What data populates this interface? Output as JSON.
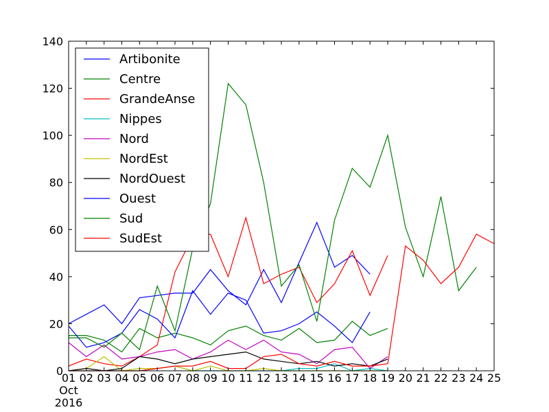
{
  "chart_data": {
    "type": "line",
    "title": "",
    "xlabel": "",
    "ylabel": "",
    "x_tick_labels": [
      "01",
      "02",
      "03",
      "04",
      "05",
      "06",
      "07",
      "08",
      "09",
      "10",
      "11",
      "12",
      "13",
      "14",
      "15",
      "16",
      "17",
      "18",
      "19",
      "20",
      "21",
      "22",
      "23",
      "24",
      "25"
    ],
    "x_sub_labels": [
      "Oct",
      "2016"
    ],
    "x_range": [
      1,
      25
    ],
    "ylim": [
      0,
      140
    ],
    "y_ticks": [
      0,
      20,
      40,
      60,
      80,
      100,
      120,
      140
    ],
    "grid": false,
    "legend_position": "top-left",
    "series": [
      {
        "name": "Artibonite",
        "color": "#0000ff",
        "x": [
          1,
          2,
          3,
          4,
          5,
          6,
          7,
          8,
          9,
          10,
          11,
          12,
          13,
          14,
          15,
          16,
          17,
          18
        ],
        "values": [
          20,
          24,
          28,
          20,
          31,
          32,
          33,
          33,
          43,
          34,
          28,
          43,
          29,
          46,
          63,
          44,
          49,
          41
        ]
      },
      {
        "name": "Centre",
        "color": "#008000",
        "x": [
          1,
          2,
          3,
          4,
          5,
          6,
          7,
          8,
          9,
          10,
          11,
          12,
          13,
          14,
          15,
          16,
          17,
          18,
          19
        ],
        "values": [
          15,
          15,
          13,
          8,
          18,
          14,
          16,
          14,
          11,
          17,
          19,
          15,
          13,
          18,
          12,
          13,
          21,
          15,
          18
        ]
      },
      {
        "name": "GrandeAnse",
        "color": "#ff0000",
        "x": [
          1,
          2,
          3,
          4,
          5,
          6,
          7,
          8,
          9,
          10,
          11,
          12,
          13,
          14,
          15,
          16,
          17,
          18,
          19
        ],
        "values": [
          2,
          5,
          3,
          2,
          6,
          11,
          42,
          57,
          58,
          40,
          65,
          37,
          41,
          44,
          29,
          37,
          51,
          32,
          49
        ]
      },
      {
        "name": "Nippes",
        "color": "#00bfbf",
        "x": [
          1,
          2,
          3,
          4,
          5,
          6,
          7,
          8,
          9,
          10,
          11,
          12,
          13,
          14,
          15,
          16,
          17,
          18,
          19
        ],
        "values": [
          0,
          0,
          0,
          0,
          0,
          1,
          2,
          0,
          0,
          0,
          0,
          0,
          0,
          1,
          1,
          3,
          0,
          1,
          0
        ]
      },
      {
        "name": "Nord",
        "color": "#bf00bf",
        "x": [
          1,
          2,
          3,
          4,
          5,
          6,
          7,
          8,
          9,
          10,
          11,
          12,
          13,
          14,
          15,
          16,
          17,
          18,
          19
        ],
        "values": [
          12,
          6,
          11,
          5,
          6,
          8,
          9,
          5,
          8,
          13,
          9,
          13,
          8,
          7,
          3,
          9,
          10,
          1,
          6
        ]
      },
      {
        "name": "NordEst",
        "color": "#bfbf00",
        "x": [
          1,
          2,
          3,
          4,
          5,
          6,
          7,
          8,
          9,
          10,
          11,
          12,
          13,
          14,
          15,
          16,
          17,
          18,
          19
        ],
        "values": [
          0,
          1,
          6,
          0,
          1,
          1,
          2,
          0,
          2,
          0,
          0,
          1,
          0,
          0,
          0,
          0,
          0,
          0,
          0
        ]
      },
      {
        "name": "NordOuest",
        "color": "#000000",
        "x": [
          1,
          2,
          3,
          4,
          5,
          6,
          7,
          8,
          9,
          10,
          11,
          12,
          13,
          14,
          15,
          16,
          17,
          18,
          19
        ],
        "values": [
          0,
          1,
          0,
          1,
          6,
          5,
          3,
          5,
          6,
          7,
          8,
          5,
          4,
          3,
          4,
          2,
          3,
          2,
          5
        ]
      },
      {
        "name": "Ouest",
        "color": "#0000ff",
        "x": [
          1,
          2,
          3,
          4,
          5,
          6,
          7,
          8,
          9,
          10,
          11,
          12,
          13,
          14,
          15,
          16,
          17,
          18
        ],
        "values": [
          19,
          10,
          12,
          16,
          26,
          22,
          14,
          34,
          24,
          33,
          30,
          16,
          17,
          20,
          25,
          19,
          12,
          25
        ]
      },
      {
        "name": "Sud",
        "color": "#008000",
        "x": [
          1,
          2,
          3,
          4,
          5,
          6,
          7,
          8,
          9,
          10,
          11,
          12,
          13,
          14,
          15,
          16,
          17,
          18,
          19,
          20,
          21,
          22,
          23,
          24
        ],
        "values": [
          14,
          14,
          10,
          16,
          9,
          36,
          17,
          52,
          71,
          122,
          113,
          80,
          36,
          45,
          21,
          64,
          86,
          78,
          100,
          61,
          40,
          74,
          34,
          44
        ]
      },
      {
        "name": "SudEst",
        "color": "#ff0000",
        "x": [
          1,
          2,
          3,
          4,
          5,
          6,
          7,
          8,
          9,
          10,
          11,
          12,
          13,
          14,
          15,
          16,
          17,
          18,
          19,
          20,
          21,
          22,
          23,
          24,
          25
        ],
        "values": [
          0,
          0,
          0,
          0,
          0,
          1,
          2,
          2,
          4,
          1,
          1,
          6,
          7,
          3,
          2,
          4,
          2,
          2,
          3,
          53,
          47,
          37,
          44,
          58,
          54
        ]
      }
    ]
  }
}
